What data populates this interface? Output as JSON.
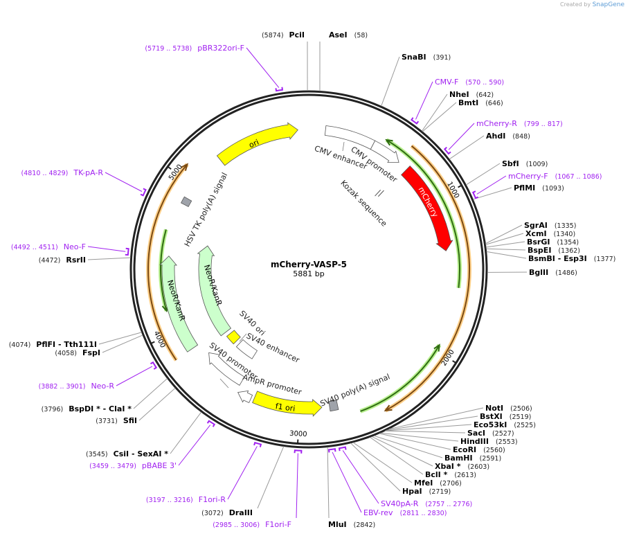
{
  "header": {
    "credit": "Created by",
    "brand": "SnapGene"
  },
  "plasmid": {
    "name": "mCherry-VASP-5",
    "length_label": "5881 bp",
    "length": 5881
  },
  "ticks": [
    {
      "bp": 1000,
      "label": "1000"
    },
    {
      "bp": 2000,
      "label": "2000"
    },
    {
      "bp": 3000,
      "label": "3000"
    },
    {
      "bp": 4000,
      "label": "4000"
    },
    {
      "bp": 5000,
      "label": "5000"
    }
  ],
  "enzymes": [
    {
      "name": "PciI",
      "pos": "(5874)",
      "bp": 5874
    },
    {
      "name": "AseI",
      "pos": "(58)",
      "bp": 58
    },
    {
      "name": "SnaBI",
      "pos": "(391)",
      "bp": 391
    },
    {
      "name": "NheI",
      "pos": "(642)",
      "bp": 642
    },
    {
      "name": "BmtI",
      "pos": "(646)",
      "bp": 646
    },
    {
      "name": "AhdI",
      "pos": "(848)",
      "bp": 848
    },
    {
      "name": "SbfI",
      "pos": "(1009)",
      "bp": 1009
    },
    {
      "name": "PflMI",
      "pos": "(1093)",
      "bp": 1093
    },
    {
      "name": "SgrAI",
      "pos": "(1335)",
      "bp": 1335
    },
    {
      "name": "XcmI",
      "pos": "(1340)",
      "bp": 1340
    },
    {
      "name": "BsrGI",
      "pos": "(1354)",
      "bp": 1354
    },
    {
      "name": "BspEI",
      "pos": "(1362)",
      "bp": 1362
    },
    {
      "name": "BsmBI  - Esp3I",
      "pos": "(1377)",
      "bp": 1377
    },
    {
      "name": "BglII",
      "pos": "(1486)",
      "bp": 1486
    },
    {
      "name": "NotI",
      "pos": "(2506)",
      "bp": 2506
    },
    {
      "name": "BstXI",
      "pos": "(2519)",
      "bp": 2519
    },
    {
      "name": "Eco53kI",
      "pos": "(2525)",
      "bp": 2525
    },
    {
      "name": "SacI",
      "pos": "(2527)",
      "bp": 2527
    },
    {
      "name": "HindIII",
      "pos": "(2553)",
      "bp": 2553
    },
    {
      "name": "EcoRI",
      "pos": "(2560)",
      "bp": 2560
    },
    {
      "name": "BamHI",
      "pos": "(2591)",
      "bp": 2591
    },
    {
      "name": "XbaI *",
      "pos": "(2603)",
      "bp": 2603
    },
    {
      "name": "BclI *",
      "pos": "(2613)",
      "bp": 2613
    },
    {
      "name": "MfeI",
      "pos": "(2706)",
      "bp": 2706
    },
    {
      "name": "HpaI",
      "pos": "(2719)",
      "bp": 2719
    },
    {
      "name": "MluI",
      "pos": "(2842)",
      "bp": 2842
    },
    {
      "name": "DraIII",
      "pos": "(3072)",
      "bp": 3072
    },
    {
      "name": "CsiI  - SexAI *",
      "pos": "(3545)",
      "bp": 3545
    },
    {
      "name": "SfiI",
      "pos": "(3731)",
      "bp": 3731
    },
    {
      "name": "BspDI *  - ClaI *",
      "pos": "(3796)",
      "bp": 3796
    },
    {
      "name": "PflFI  - Tth111I",
      "pos": "(4074)",
      "bp": 4074
    },
    {
      "name": "FspI",
      "pos": "(4058)",
      "bp": 4058
    },
    {
      "name": "RsrII",
      "pos": "(4472)",
      "bp": 4472
    }
  ],
  "primers": [
    {
      "name": "pBR322ori-F",
      "range": "(5719 .. 5738)",
      "start": 5719,
      "end": 5738
    },
    {
      "name": "CMV-F",
      "range": "(570 .. 590)",
      "start": 570,
      "end": 590
    },
    {
      "name": "mCherry-R",
      "range": "(799 .. 817)",
      "start": 799,
      "end": 817
    },
    {
      "name": "mCherry-F",
      "range": "(1067 .. 1086)",
      "start": 1067,
      "end": 1086
    },
    {
      "name": "SV40pA-R",
      "range": "(2757 .. 2776)",
      "start": 2757,
      "end": 2776
    },
    {
      "name": "EBV-rev",
      "range": "(2811 .. 2830)",
      "start": 2811,
      "end": 2830
    },
    {
      "name": "F1ori-F",
      "range": "(2985 .. 3006)",
      "start": 2985,
      "end": 3006
    },
    {
      "name": "F1ori-R",
      "range": "(3197 .. 3216)",
      "start": 3197,
      "end": 3216
    },
    {
      "name": "pBABE 3'",
      "range": "(3459 .. 3479)",
      "start": 3459,
      "end": 3479
    },
    {
      "name": "Neo-R",
      "range": "(3882 .. 3901)",
      "start": 3882,
      "end": 3901
    },
    {
      "name": "Neo-F",
      "range": "(4492 .. 4511)",
      "start": 4492,
      "end": 4511
    },
    {
      "name": "TK-pA-R",
      "range": "(4810 .. 4829)",
      "start": 4810,
      "end": 4829
    }
  ],
  "features": [
    {
      "name": "ori",
      "start": 5245,
      "end": 5808,
      "dir": 1,
      "color": "#ffff00",
      "text_color": "#000000"
    },
    {
      "name": "CMV enhancer",
      "start": 112,
      "end": 445,
      "dir": 0,
      "color": "#ffffff"
    },
    {
      "name": "CMV promoter",
      "start": 445,
      "end": 655,
      "dir": 1,
      "color": "#ffffff"
    },
    {
      "name": "Kozak sequence",
      "start": 700,
      "end": 710,
      "dir": 0,
      "color": "#ffffff"
    },
    {
      "name": "mCherry",
      "start": 725,
      "end": 1345,
      "dir": 1,
      "color": "#ff0000",
      "text_color": "#ffffff"
    },
    {
      "name": "SV40 poly(A) signal",
      "start": 2745,
      "end": 2800,
      "dir": 0,
      "color": "#9fa3aa"
    },
    {
      "name": "f1 ori",
      "start": 2852,
      "end": 3315,
      "dir": -1,
      "color": "#ffff00",
      "text_color": "#000000"
    },
    {
      "name": "AmpR promoter",
      "start": 3335,
      "end": 3430,
      "dir": 1,
      "color": "#ffffff"
    },
    {
      "name": "SV40 promoter",
      "start": 3445,
      "end": 3760,
      "dir": 1,
      "color": "#ffffff"
    },
    {
      "name": "SV40 enhancer",
      "start": 3470,
      "end": 3645,
      "dir": 0,
      "color": "#ffffff"
    },
    {
      "name": "SV40 ori",
      "start": 3680,
      "end": 3770,
      "dir": 0,
      "color": "#ffff00"
    },
    {
      "name": "NeoR/KanR",
      "start": 3805,
      "end": 4625,
      "dir": 1,
      "color": "#ccffcc",
      "text_color": "#000000"
    },
    {
      "name": "NeoR/KanR",
      "start": 3852,
      "end": 4500,
      "dir": 1,
      "color": "#ccffcc",
      "text_color": "#000000"
    },
    {
      "name": "HSV TK poly(A) signal",
      "start": 4860,
      "end": 4905,
      "dir": 0,
      "color": "#9fa3aa"
    }
  ],
  "orfs": [
    {
      "start": 506,
      "end": 1585,
      "dir": -1,
      "color": "#2f6b12",
      "glow": "#b8f08e"
    },
    {
      "start": 650,
      "end": 2475,
      "dir": 1,
      "color": "#7a4a12",
      "glow": "#ffd08a"
    },
    {
      "start": 1962,
      "end": 2614,
      "dir": -1,
      "color": "#2f6b12",
      "glow": "#b8f08e"
    },
    {
      "start": 4145,
      "end": 4666,
      "dir": -1,
      "color": "#2f6b12",
      "glow": "#b8f08e"
    },
    {
      "start": 3849,
      "end": 5078,
      "dir": 1,
      "color": "#7a4a12",
      "glow": "#ffd08a"
    }
  ]
}
